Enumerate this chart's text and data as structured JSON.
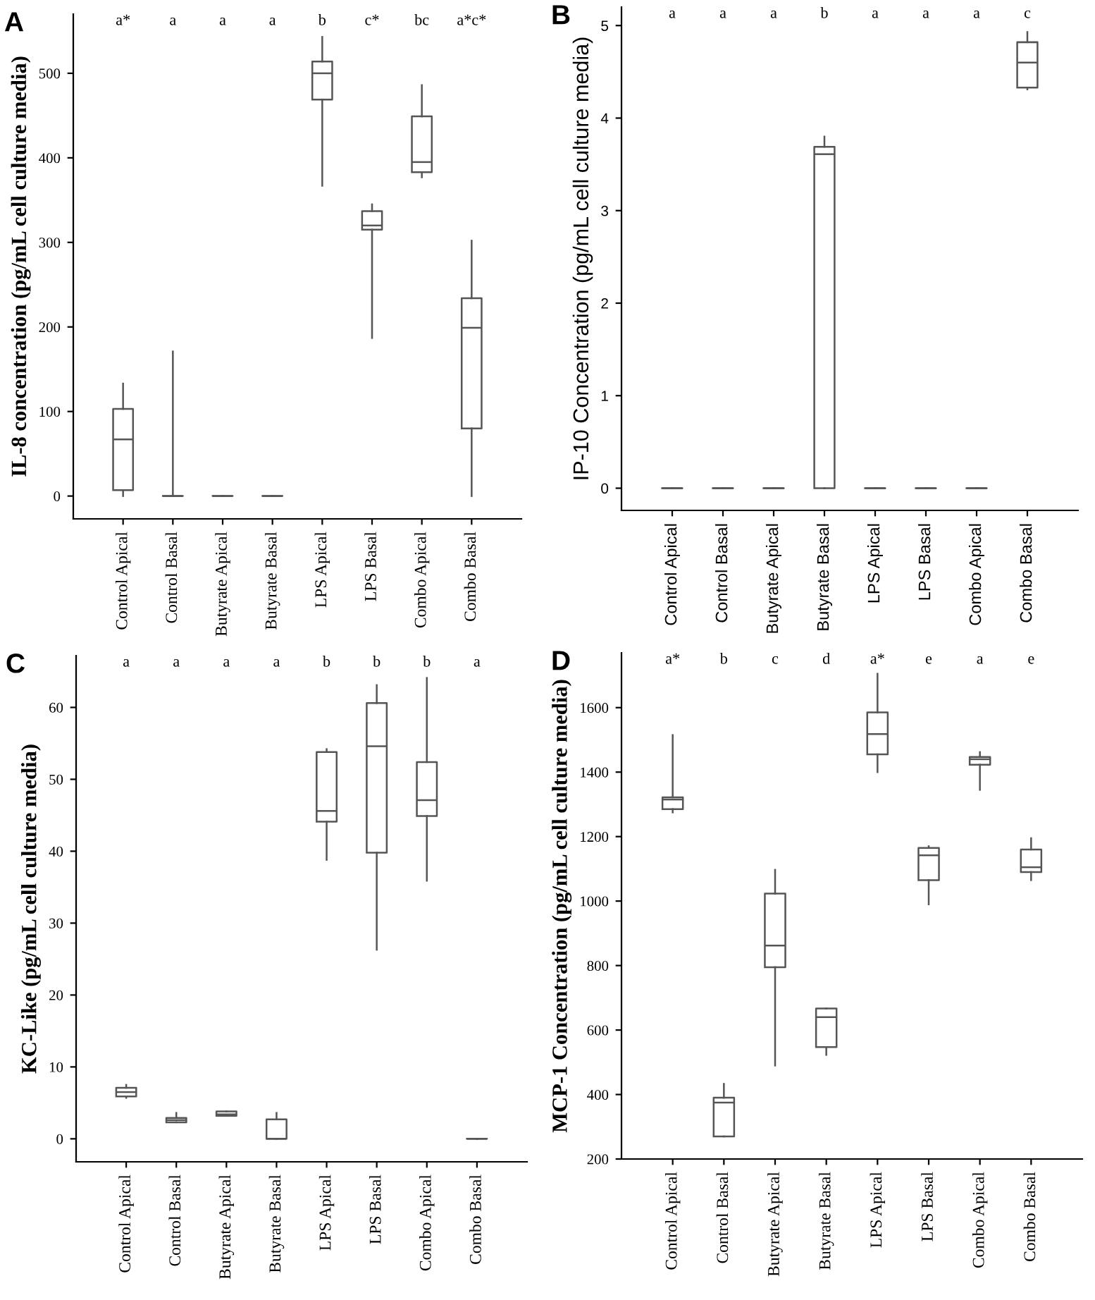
{
  "chart_data": [
    {
      "type": "box",
      "title": "A",
      "ylabel": "IL-8 concentration (pg/mL cell culture media)",
      "categories": [
        "Control Apical",
        "Control Basal",
        "Butyrate Apical",
        "Butyrate Basal",
        "LPS Apical",
        "LPS Basal",
        "Combo Apical",
        "Combo Basal"
      ],
      "color": "#555555",
      "ylim": [
        -27,
        570
      ],
      "yticks": [
        0,
        100,
        200,
        300,
        400,
        500
      ],
      "grid": false,
      "boxes": [
        {
          "low": 0,
          "q1": 7,
          "median": 67,
          "q3": 103,
          "high": 133
        },
        {
          "low": 0,
          "q1": 0,
          "median": 0,
          "q3": 0,
          "high": 171
        },
        {
          "low": 0,
          "q1": 0,
          "median": 0,
          "q3": 0,
          "high": 0
        },
        {
          "low": 0,
          "q1": 0,
          "median": 0,
          "q3": 0,
          "high": 0
        },
        {
          "low": 367,
          "q1": 469,
          "median": 500,
          "q3": 514,
          "high": 543
        },
        {
          "low": 187,
          "q1": 315,
          "median": 320,
          "q3": 337,
          "high": 345
        },
        {
          "low": 377,
          "q1": 383,
          "median": 395,
          "q3": 449,
          "high": 486
        },
        {
          "low": 0,
          "q1": 80,
          "median": 199,
          "q3": 234,
          "high": 302
        }
      ],
      "annotations": [
        "a*",
        "a",
        "a",
        "a",
        "b",
        "c*",
        "bc",
        "a*c*"
      ]
    },
    {
      "type": "box",
      "title": "B",
      "ylabel": "IP-10 Concentration (pg/mL cell culture media)",
      "categories": [
        "Control Apical",
        "Control Basal",
        "Butyrate Apical",
        "Butyrate Basal",
        "LPS Apical",
        "LPS Basal",
        "Combo Apical",
        "Combo Basal"
      ],
      "color": "#555555",
      "ylim": [
        -0.24,
        5.2
      ],
      "yticks": [
        0,
        1,
        2,
        3,
        4,
        5
      ],
      "grid": false,
      "boxes": [
        {
          "low": 0,
          "q1": 0,
          "median": 0,
          "q3": 0,
          "high": 0
        },
        {
          "low": 0,
          "q1": 0,
          "median": 0,
          "q3": 0,
          "high": 0
        },
        {
          "low": 0,
          "q1": 0,
          "median": 0,
          "q3": 0,
          "high": 0
        },
        {
          "low": 0,
          "q1": 0,
          "median": 3.61,
          "q3": 3.69,
          "high": 3.8
        },
        {
          "low": 0,
          "q1": 0,
          "median": 0,
          "q3": 0,
          "high": 0
        },
        {
          "low": 0,
          "q1": 0,
          "median": 0,
          "q3": 0,
          "high": 0
        },
        {
          "low": 0,
          "q1": 0,
          "median": 0,
          "q3": 0,
          "high": 0
        },
        {
          "low": 4.31,
          "q1": 4.33,
          "median": 4.6,
          "q3": 4.82,
          "high": 4.93
        }
      ],
      "annotations": [
        "a",
        "a",
        "a",
        "b",
        "a",
        "a",
        "a",
        "c"
      ]
    },
    {
      "type": "box",
      "title": "C",
      "ylabel": "KC-Like (pg/mL cell culture media)",
      "categories": [
        "Control Apical",
        "Control Basal",
        "Butyrate Apical",
        "Butyrate Basal",
        "LPS Apical",
        "LPS Basal",
        "Combo Apical",
        "Combo Basal"
      ],
      "color": "#555555",
      "ylim": [
        -3.2,
        67.2
      ],
      "yticks": [
        0,
        10,
        20,
        30,
        40,
        50,
        60
      ],
      "grid": false,
      "boxes": [
        {
          "low": 5.7,
          "q1": 5.9,
          "median": 6.5,
          "q3": 7.1,
          "high": 7.5
        },
        {
          "low": 2.3,
          "q1": 2.3,
          "median": 2.6,
          "q3": 2.9,
          "high": 3.6
        },
        {
          "low": 3.2,
          "q1": 3.2,
          "median": 3.4,
          "q3": 3.8,
          "high": 3.8
        },
        {
          "low": 0,
          "q1": 0,
          "median": 0,
          "q3": 2.7,
          "high": 3.6
        },
        {
          "low": 38.8,
          "q1": 44.1,
          "median": 45.6,
          "q3": 53.8,
          "high": 54.2
        },
        {
          "low": 26.3,
          "q1": 39.8,
          "median": 54.6,
          "q3": 60.6,
          "high": 63.1
        },
        {
          "low": 35.9,
          "q1": 44.9,
          "median": 47.1,
          "q3": 52.4,
          "high": 64.1
        },
        {
          "low": 0,
          "q1": 0,
          "median": 0,
          "q3": 0,
          "high": 0
        }
      ],
      "annotations": [
        "a",
        "a",
        "a",
        "a",
        "b",
        "b",
        "b",
        "a"
      ]
    },
    {
      "type": "box",
      "title": "D",
      "ylabel": "MCP-1 Concentration (pg/mL cell culture media)",
      "categories": [
        "Control Apical",
        "Control Basal",
        "Butyrate Apical",
        "Butyrate Basal",
        "LPS Apical",
        "LPS Basal",
        "Combo Apical",
        "Combo Basal"
      ],
      "color": "#555555",
      "ylim": [
        200,
        1770
      ],
      "yticks": [
        200,
        400,
        600,
        800,
        1000,
        1200,
        1400,
        1600
      ],
      "grid": false,
      "boxes": [
        {
          "low": 1275,
          "q1": 1285,
          "median": 1315,
          "q3": 1322,
          "high": 1515
        },
        {
          "low": 270,
          "q1": 270,
          "median": 375,
          "q3": 390,
          "high": 433
        },
        {
          "low": 490,
          "q1": 795,
          "median": 862,
          "q3": 1023,
          "high": 1097
        },
        {
          "low": 523,
          "q1": 547,
          "median": 640,
          "q3": 667,
          "high": 667
        },
        {
          "low": 1400,
          "q1": 1455,
          "median": 1518,
          "q3": 1585,
          "high": 1705
        },
        {
          "low": 990,
          "q1": 1065,
          "median": 1142,
          "q3": 1165,
          "high": 1170
        },
        {
          "low": 1345,
          "q1": 1423,
          "median": 1440,
          "q3": 1447,
          "high": 1462
        },
        {
          "low": 1065,
          "q1": 1090,
          "median": 1105,
          "q3": 1160,
          "high": 1195
        }
      ],
      "annotations": [
        "a*",
        "b",
        "c",
        "d",
        "a*",
        "e",
        "a",
        "e"
      ]
    }
  ]
}
